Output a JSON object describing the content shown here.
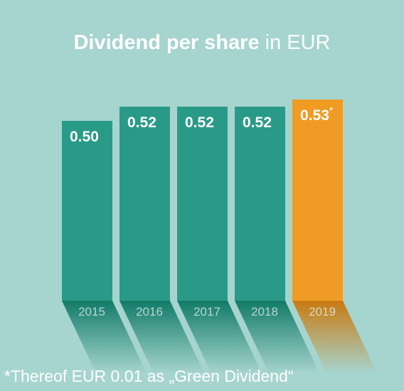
{
  "chart_data": {
    "type": "bar",
    "title_bold": "Dividend per share",
    "title_rest": " in EUR",
    "categories": [
      "2015",
      "2016",
      "2017",
      "2018",
      "2019"
    ],
    "values": [
      0.5,
      0.52,
      0.52,
      0.52,
      0.53
    ],
    "value_labels": [
      "0.50",
      "0.52",
      "0.52",
      "0.52",
      "0.53"
    ],
    "highlight_index": 4,
    "highlight_marker": "*",
    "colors": {
      "bar": "#2a9a88",
      "bar_highlight": "#f09b24",
      "shadow": "#127b68",
      "shadow_highlight": "#c97a10",
      "background": "#a6d4ce"
    }
  },
  "footnote": "*Thereof EUR 0.01 as „Green Dividend“"
}
